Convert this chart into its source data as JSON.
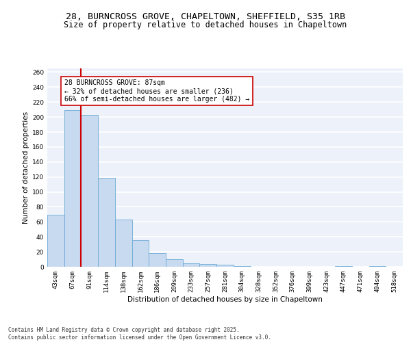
{
  "title1": "28, BURNCROSS GROVE, CHAPELTOWN, SHEFFIELD, S35 1RB",
  "title2": "Size of property relative to detached houses in Chapeltown",
  "xlabel": "Distribution of detached houses by size in Chapeltown",
  "ylabel": "Number of detached properties",
  "categories": [
    "43sqm",
    "67sqm",
    "91sqm",
    "114sqm",
    "138sqm",
    "162sqm",
    "186sqm",
    "209sqm",
    "233sqm",
    "257sqm",
    "281sqm",
    "304sqm",
    "328sqm",
    "352sqm",
    "376sqm",
    "399sqm",
    "423sqm",
    "447sqm",
    "471sqm",
    "494sqm",
    "518sqm"
  ],
  "values": [
    69,
    209,
    203,
    119,
    63,
    36,
    18,
    10,
    5,
    4,
    3,
    1,
    0,
    0,
    0,
    0,
    0,
    1,
    0,
    1,
    0
  ],
  "bar_color": "#c8daf0",
  "bar_edge_color": "#6aaad4",
  "bar_width": 1.0,
  "ref_line_color": "#cc0000",
  "annotation_box_text": "28 BURNCROSS GROVE: 87sqm\n← 32% of detached houses are smaller (236)\n66% of semi-detached houses are larger (482) →",
  "ylim": [
    0,
    265
  ],
  "yticks": [
    0,
    20,
    40,
    60,
    80,
    100,
    120,
    140,
    160,
    180,
    200,
    220,
    240,
    260
  ],
  "background_color": "#edf2fa",
  "grid_color": "#ffffff",
  "footer_text": "Contains HM Land Registry data © Crown copyright and database right 2025.\nContains public sector information licensed under the Open Government Licence v3.0.",
  "title_fontsize": 9.5,
  "subtitle_fontsize": 8.5,
  "axis_label_fontsize": 7.5,
  "tick_fontsize": 6.5,
  "annotation_fontsize": 7,
  "footer_fontsize": 5.5
}
